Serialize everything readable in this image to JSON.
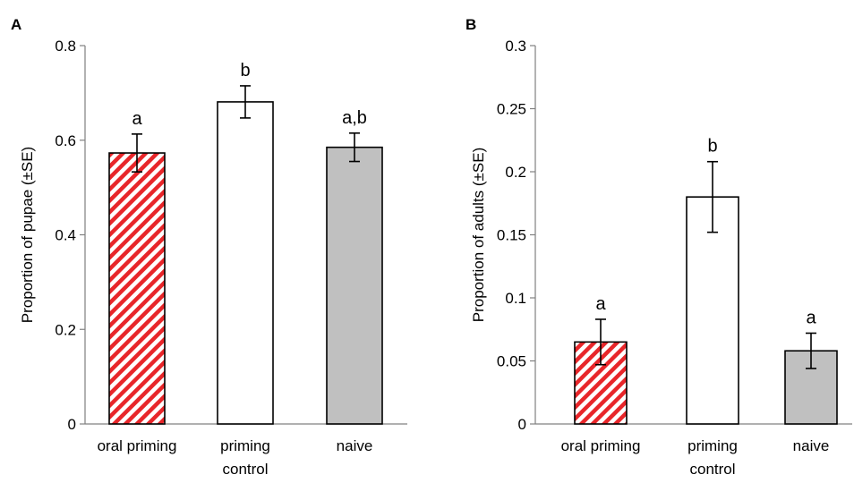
{
  "chart_data": [
    {
      "type": "bar",
      "panel": "A",
      "categories": [
        "oral priming",
        "priming control",
        "naive"
      ],
      "category_lines": [
        [
          "oral priming"
        ],
        [
          "priming",
          "control"
        ],
        [
          "naive"
        ]
      ],
      "values": [
        0.573,
        0.681,
        0.585
      ],
      "errors": [
        0.04,
        0.034,
        0.03
      ],
      "significance": [
        "a",
        "b",
        "a,b"
      ],
      "fills": [
        "hatch-red",
        "#ffffff",
        "#c0c0c0"
      ],
      "ylabel": "Proportion of pupae (±SE)",
      "xlabel": "",
      "ylim": [
        0,
        0.8
      ],
      "yticks": [
        0,
        0.2,
        0.4,
        0.6,
        0.8
      ],
      "ytick_labels": [
        "0",
        "0.2",
        "0.4",
        "0.6",
        "0.8"
      ],
      "grid": false
    },
    {
      "type": "bar",
      "panel": "B",
      "categories": [
        "oral priming",
        "priming control",
        "naive"
      ],
      "category_lines": [
        [
          "oral priming"
        ],
        [
          "priming",
          "control"
        ],
        [
          "naive"
        ]
      ],
      "values": [
        0.065,
        0.18,
        0.058
      ],
      "errors": [
        0.018,
        0.028,
        0.014
      ],
      "significance": [
        "a",
        "b",
        "a"
      ],
      "fills": [
        "hatch-red",
        "#ffffff",
        "#c0c0c0"
      ],
      "ylabel": "Proportion of adults (±SE)",
      "xlabel": "",
      "ylim": [
        0,
        0.3
      ],
      "yticks": [
        0,
        0.05,
        0.1,
        0.15,
        0.2,
        0.25,
        0.3
      ],
      "ytick_labels": [
        "0",
        "0.05",
        "0.1",
        "0.15",
        "0.2",
        "0.25",
        "0.3"
      ],
      "grid": false
    }
  ],
  "colors": {
    "hatch": "#e8262a",
    "grey": "#c0c0c0",
    "axis": "#808080"
  }
}
